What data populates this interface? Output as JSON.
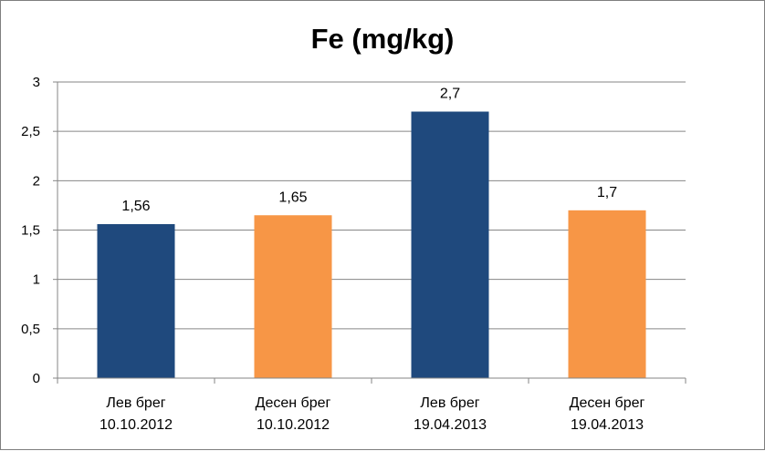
{
  "chart_data": {
    "type": "bar",
    "title": "Fe (mg/kg)",
    "xlabel": "",
    "ylabel": "",
    "ylim": [
      0,
      3
    ],
    "yticks": [
      "0",
      "0,5",
      "1",
      "1,5",
      "2",
      "2,5",
      "3"
    ],
    "ytick_values": [
      0,
      0.5,
      1,
      1.5,
      2,
      2.5,
      3
    ],
    "grid": true,
    "legend": "none",
    "categories": [
      [
        "Лев брег",
        "10.10.2012"
      ],
      [
        "Десен брег",
        "10.10.2012"
      ],
      [
        "Лев брег",
        "19.04.2013"
      ],
      [
        "Десен брег",
        "19.04.2013"
      ]
    ],
    "values": [
      1.56,
      1.65,
      2.7,
      1.7
    ],
    "value_labels": [
      "1,56",
      "1,65",
      "2,7",
      "1,7"
    ],
    "colors": [
      "#1f497d",
      "#f79646",
      "#1f497d",
      "#f79646"
    ]
  }
}
